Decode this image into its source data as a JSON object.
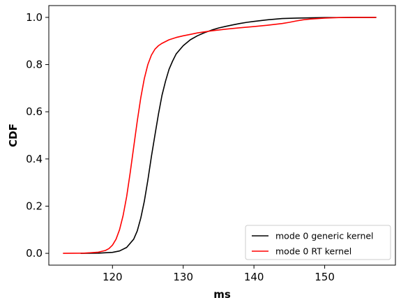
{
  "chart_data": {
    "type": "line",
    "title": "",
    "xlabel": "ms",
    "ylabel": "CDF",
    "xlim": [
      111,
      160
    ],
    "ylim": [
      -0.05,
      1.05
    ],
    "xticks": [
      120,
      130,
      140,
      150
    ],
    "yticks": [
      0.0,
      0.2,
      0.4,
      0.6,
      0.8,
      1.0
    ],
    "xtick_labels": [
      "120",
      "130",
      "140",
      "150"
    ],
    "ytick_labels": [
      "0.0",
      "0.2",
      "0.4",
      "0.6",
      "0.8",
      "1.0"
    ],
    "grid": false,
    "legend_position": "lower-right",
    "series": [
      {
        "name": "mode 0 generic kernel",
        "color": "#000000",
        "x": [
          115.5,
          118,
          120,
          121,
          122,
          123,
          123.5,
          124,
          124.5,
          125,
          125.5,
          126,
          126.5,
          127,
          127.5,
          128,
          128.5,
          129,
          130,
          131,
          132,
          133,
          134,
          135,
          136,
          137,
          138,
          139,
          140,
          142,
          144,
          146,
          148,
          150,
          152,
          155,
          157.3
        ],
        "y": [
          0.0,
          0.001,
          0.004,
          0.01,
          0.025,
          0.06,
          0.095,
          0.15,
          0.22,
          0.31,
          0.41,
          0.5,
          0.59,
          0.67,
          0.73,
          0.78,
          0.815,
          0.845,
          0.88,
          0.905,
          0.922,
          0.935,
          0.946,
          0.955,
          0.962,
          0.968,
          0.974,
          0.979,
          0.983,
          0.99,
          0.995,
          0.997,
          0.998,
          0.999,
          0.999,
          1.0,
          1.0
        ]
      },
      {
        "name": "mode 0 RT kernel",
        "color": "#ff0000",
        "x": [
          113,
          116,
          118,
          119,
          119.5,
          120,
          120.5,
          121,
          121.5,
          122,
          122.5,
          123,
          123.5,
          124,
          124.5,
          125,
          125.5,
          126,
          126.5,
          127,
          128,
          129,
          130,
          131,
          132,
          134,
          136,
          138,
          140,
          142,
          144,
          145,
          146,
          147,
          148,
          150,
          152,
          155,
          157.3
        ],
        "y": [
          0.0,
          0.001,
          0.005,
          0.012,
          0.02,
          0.035,
          0.06,
          0.1,
          0.16,
          0.24,
          0.34,
          0.45,
          0.56,
          0.66,
          0.74,
          0.8,
          0.84,
          0.865,
          0.88,
          0.89,
          0.905,
          0.915,
          0.922,
          0.928,
          0.934,
          0.943,
          0.95,
          0.956,
          0.961,
          0.967,
          0.974,
          0.979,
          0.985,
          0.99,
          0.993,
          0.997,
          0.999,
          1.0,
          1.0
        ]
      }
    ]
  }
}
